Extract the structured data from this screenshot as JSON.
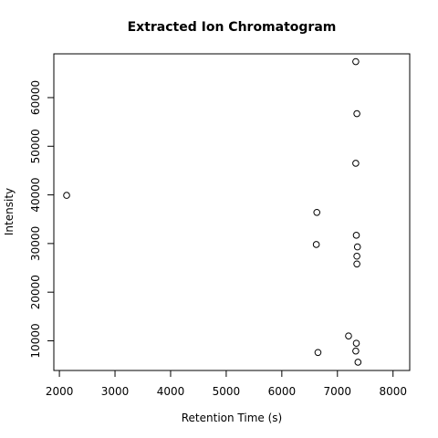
{
  "chart_data": {
    "type": "scatter",
    "title": "Extracted Ion Chromatogram",
    "xlabel": "Retention Time (s)",
    "ylabel": "Intensity",
    "xlim": [
      1900,
      8300
    ],
    "ylim": [
      3900,
      69000
    ],
    "xticks": [
      2000,
      3000,
      4000,
      5000,
      6000,
      7000,
      8000
    ],
    "yticks": [
      10000,
      20000,
      30000,
      40000,
      50000,
      60000
    ],
    "grid": false,
    "marker": "open-circle",
    "points": [
      {
        "x": 2130,
        "y": 39900
      },
      {
        "x": 6630,
        "y": 36400
      },
      {
        "x": 6620,
        "y": 29800
      },
      {
        "x": 6650,
        "y": 7600
      },
      {
        "x": 7200,
        "y": 11000
      },
      {
        "x": 7330,
        "y": 67400
      },
      {
        "x": 7350,
        "y": 56700
      },
      {
        "x": 7330,
        "y": 46500
      },
      {
        "x": 7340,
        "y": 31700
      },
      {
        "x": 7360,
        "y": 29300
      },
      {
        "x": 7350,
        "y": 27400
      },
      {
        "x": 7350,
        "y": 25800
      },
      {
        "x": 7340,
        "y": 9500
      },
      {
        "x": 7330,
        "y": 7900
      },
      {
        "x": 7370,
        "y": 5600
      }
    ]
  }
}
